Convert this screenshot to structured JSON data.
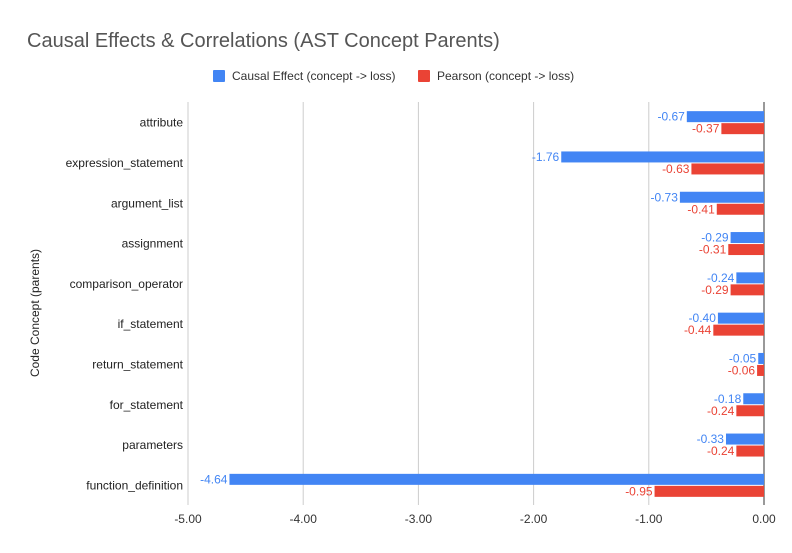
{
  "chart_data": {
    "type": "bar",
    "orientation": "horizontal",
    "title": "Causal Effects & Correlations (AST Concept Parents)",
    "xlabel": "",
    "ylabel": "Code Concept (parents)",
    "xlim": [
      -5.0,
      0.0
    ],
    "x_ticks": [
      -5.0,
      -4.0,
      -3.0,
      -2.0,
      -1.0,
      0.0
    ],
    "x_tick_labels": [
      "-5.00",
      "-4.00",
      "-3.00",
      "-2.00",
      "-1.00",
      "0.00"
    ],
    "grid": true,
    "legend_position": "top",
    "categories": [
      "attribute",
      "expression_statement",
      "argument_list",
      "assignment",
      "comparison_operator",
      "if_statement",
      "return_statement",
      "for_statement",
      "parameters",
      "function_definition"
    ],
    "series": [
      {
        "name": "Causal Effect (concept -> loss)",
        "color": "#4285f4",
        "values": [
          -0.67,
          -1.76,
          -0.73,
          -0.29,
          -0.24,
          -0.4,
          -0.05,
          -0.18,
          -0.33,
          -4.64
        ],
        "labels": [
          "-0.67",
          "-1.76",
          "-0.73",
          "-0.29",
          "-0.24",
          "-0.40",
          "-0.05",
          "-0.18",
          "-0.33",
          "-4.64"
        ]
      },
      {
        "name": "Pearson (concept -> loss)",
        "color": "#ea4335",
        "values": [
          -0.37,
          -0.63,
          -0.41,
          -0.31,
          -0.29,
          -0.44,
          -0.06,
          -0.24,
          -0.24,
          -0.95
        ],
        "labels": [
          "-0.37",
          "-0.63",
          "-0.41",
          "-0.31",
          "-0.29",
          "-0.44",
          "-0.06",
          "-0.24",
          "-0.24",
          "-0.95"
        ]
      }
    ]
  }
}
